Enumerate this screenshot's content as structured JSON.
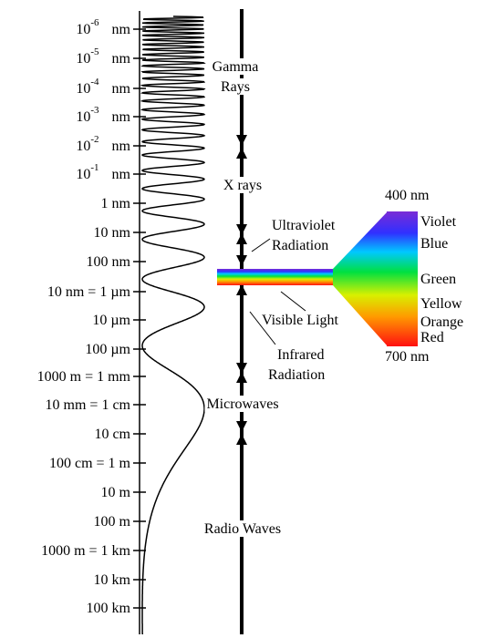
{
  "scale": [
    {
      "base": "10",
      "exponent": "-6",
      "unit": "nm"
    },
    {
      "base": "10",
      "exponent": "-5",
      "unit": "nm"
    },
    {
      "base": "10",
      "exponent": "-4",
      "unit": "nm"
    },
    {
      "base": "10",
      "exponent": "-3",
      "unit": "nm"
    },
    {
      "base": "10",
      "exponent": "-2",
      "unit": "nm"
    },
    {
      "base": "10",
      "exponent": "-1",
      "unit": "nm"
    },
    {
      "label": "1 nm"
    },
    {
      "label": "10 nm"
    },
    {
      "label": "100 nm"
    },
    {
      "label": "10   nm = 1 µm"
    },
    {
      "label": "10 µm"
    },
    {
      "label": "100 µm"
    },
    {
      "label": "1000   m = 1 mm"
    },
    {
      "label": "10 mm = 1 cm"
    },
    {
      "label": "10 cm"
    },
    {
      "label": "100 cm = 1 m"
    },
    {
      "label": "10 m"
    },
    {
      "label": "100 m"
    },
    {
      "label": "1000 m = 1 km"
    },
    {
      "label": "10 km"
    },
    {
      "label": "100 km"
    }
  ],
  "bands": [
    {
      "lines": [
        "Gamma",
        "Rays"
      ]
    },
    {
      "lines": [
        "X rays"
      ]
    },
    {
      "lines": [
        "Ultraviolet",
        "Radiation"
      ]
    },
    {
      "lines": [
        "Visible Light"
      ]
    },
    {
      "lines": [
        "Infrared",
        "Radiation"
      ]
    },
    {
      "lines": [
        "Microwaves"
      ]
    },
    {
      "lines": [
        "Radio Waves"
      ]
    }
  ],
  "visible_spectrum": {
    "min": "400 nm",
    "max": "700 nm",
    "colors": [
      "Violet",
      "Blue",
      "Green",
      "Yellow",
      "Orange",
      "Red"
    ]
  }
}
